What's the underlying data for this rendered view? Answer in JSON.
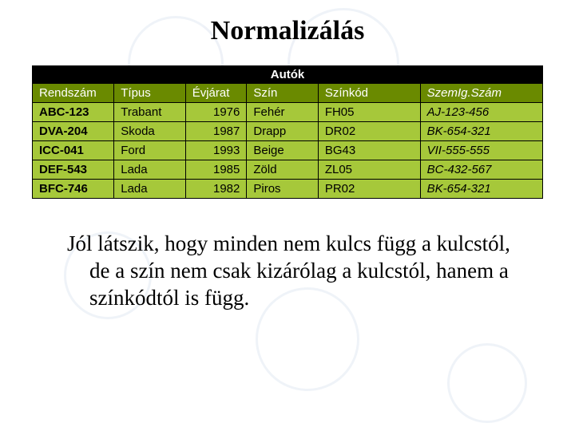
{
  "title": "Normalizálás",
  "table": {
    "caption": "Autók",
    "columns": [
      {
        "label": "Rendszám",
        "italic": false
      },
      {
        "label": "Típus",
        "italic": false
      },
      {
        "label": "Évjárat",
        "italic": false
      },
      {
        "label": "Szín",
        "italic": false
      },
      {
        "label": "Színkód",
        "italic": false
      },
      {
        "label": "SzemIg.Szám",
        "italic": true
      }
    ],
    "col_widths": [
      "16%",
      "14%",
      "12%",
      "14%",
      "20%",
      "24%"
    ],
    "rows": [
      [
        "ABC-123",
        "Trabant",
        "1976",
        "Fehér",
        "FH05",
        "AJ-123-456"
      ],
      [
        "DVA-204",
        "Skoda",
        "1987",
        "Drapp",
        "DR02",
        "BK-654-321"
      ],
      [
        "ICC-041",
        "Ford",
        "1993",
        "Beige",
        "BG43",
        "VII-555-555"
      ],
      [
        "DEF-543",
        "Lada",
        "1985",
        "Zöld",
        "ZL05",
        "BC-432-567"
      ],
      [
        "BFC-746",
        "Lada",
        "1982",
        "Piros",
        "PR02",
        "BK-654-321"
      ]
    ],
    "key_col": 0,
    "num_cols": [
      2
    ],
    "italic_cols": [
      5
    ],
    "header_bg": "#6a8a00",
    "header_fg": "#ffffff",
    "cell_bg": "#a6c83a",
    "cell_fg": "#000000",
    "caption_bg": "#000000",
    "caption_fg": "#ffffff"
  },
  "body_text": "Jól látszik, hogy minden nem kulcs függ a kulcstól, de a szín nem csak kizárólag a kulcstól, hanem a színkódtól is függ."
}
